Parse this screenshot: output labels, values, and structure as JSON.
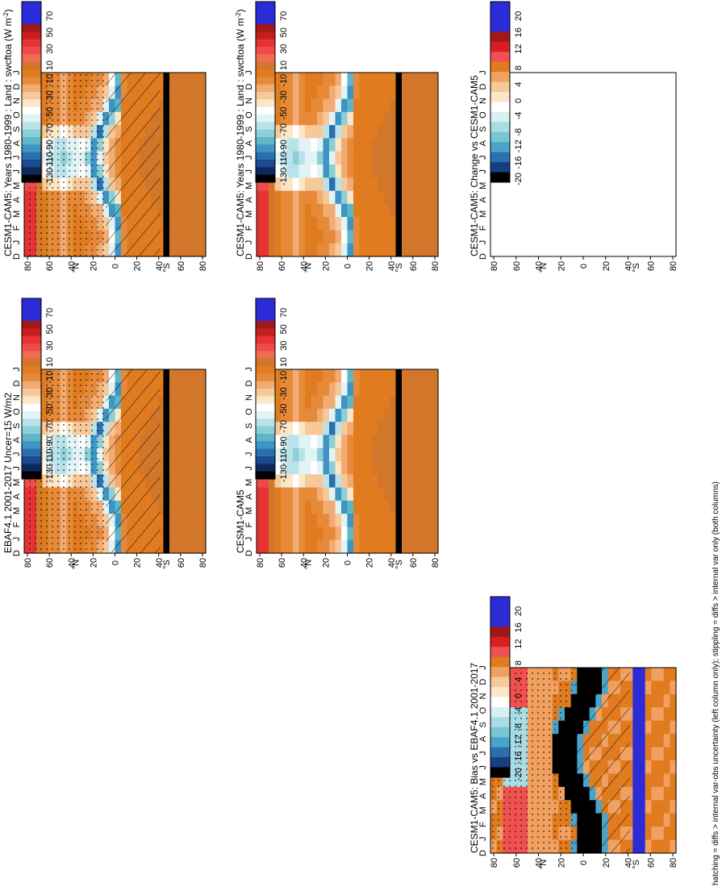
{
  "footer_note": "hatching = diffs > internal var-obs uncertainty (left column only); stippling = diffs > internal var only (both columns)",
  "months": [
    "D",
    "J",
    "F",
    "M",
    "A",
    "M",
    "J",
    "J",
    "A",
    "S",
    "O",
    "N",
    "D",
    "J"
  ],
  "lat_ticks": [
    "80",
    "60",
    "40",
    "20",
    "0",
    "20",
    "40",
    "60",
    "80"
  ],
  "lat_hemisphere": {
    "north": "°N",
    "south": "°S"
  },
  "colors": {
    "main_scale": [
      "#2b2bd8",
      "#2b2bd8",
      "#2b2bd8",
      "#a01818",
      "#c41e1e",
      "#e63232",
      "#f04b4b",
      "#f26c4f",
      "#d2762a",
      "#e07b1f",
      "#e68a3a",
      "#f2ab72",
      "#f7c99a",
      "#fbe6c7",
      "#ffffff",
      "#e2f3f5",
      "#b9e3e8",
      "#8bcfd8",
      "#5fb6c6",
      "#3e94c2",
      "#2a6fb0",
      "#1b4a8e",
      "#0d2a5e",
      "#000000"
    ],
    "diff_scale": [
      "#2b2bd8",
      "#2b2bd8",
      "#2b2bd8",
      "#a01818",
      "#d81e1e",
      "#f05050",
      "#e07b1f",
      "#f0a060",
      "#f7c99a",
      "#fbe6c7",
      "#ffffff",
      "#d8f0f2",
      "#a9dde4",
      "#78c6d3",
      "#4aa4c9",
      "#2a6fb0",
      "#173f80",
      "#000000"
    ]
  },
  "chart_data": [
    {
      "type": "heatmap",
      "panel": "top-left",
      "title": "CESM1-CAM5: Years 1980-1999 : Land : swcftoa (W m",
      "title_sup": "-2",
      "title_tail": ")",
      "colorbar_labels": [
        "70",
        "50",
        "30",
        "10",
        "-10",
        "-30",
        "-50",
        "-70",
        "-90",
        "-110",
        "-130"
      ],
      "colorscale": "main",
      "hatching": true,
      "stippling": true
    },
    {
      "type": "heatmap",
      "panel": "top-right",
      "title": "CESM1-CAM5: Years 1980-1999 : Land : swcftoa (W m",
      "title_sup": "-2",
      "title_tail": ")",
      "colorbar_labels": [
        "70",
        "50",
        "30",
        "10",
        "-10",
        "-30",
        "-50",
        "-70",
        "-90",
        "-110",
        "-130"
      ],
      "colorscale": "main",
      "hatching": false,
      "stippling": false
    },
    {
      "type": "heatmap",
      "panel": "middle-left",
      "title": "EBAF4.1 2001-2017 Uncer=15 W/m2",
      "colorbar_labels": [
        "70",
        "50",
        "30",
        "10",
        "-10",
        "-30",
        "-50",
        "-70",
        "-90",
        "-110",
        "-130"
      ],
      "colorscale": "main",
      "hatching": true,
      "stippling": true
    },
    {
      "type": "heatmap",
      "panel": "middle-right",
      "title": "CESM1-CAM5",
      "colorbar_labels": [
        "70",
        "50",
        "30",
        "10",
        "-10",
        "-30",
        "-50",
        "-70",
        "-90",
        "-110",
        "-130"
      ],
      "colorscale": "main",
      "hatching": false,
      "stippling": false
    },
    {
      "type": "heatmap",
      "panel": "bottom-left",
      "title": "CESM1-CAM5: Bias vs EBAF4.1 2001-2017",
      "colorbar_labels": [
        "20",
        "16",
        "12",
        "8",
        "4",
        "0",
        "-4",
        "-8",
        "-12",
        "-16",
        "-20"
      ],
      "colorscale": "diff",
      "hatching": true,
      "stippling": true
    },
    {
      "type": "heatmap",
      "panel": "bottom-right",
      "title": "CESM1-CAM5: Change vs CESM1-CAM5",
      "colorbar_labels": [
        "20",
        "16",
        "12",
        "8",
        "4",
        "0",
        "-4",
        "-8",
        "-12",
        "-16",
        "-20"
      ],
      "colorscale": "diff",
      "hatching": false,
      "stippling": false,
      "empty": true
    }
  ]
}
